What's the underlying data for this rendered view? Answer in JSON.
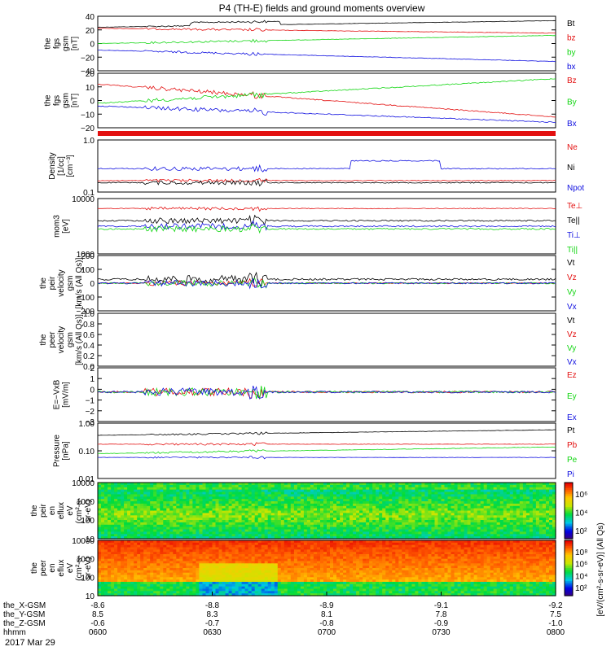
{
  "title": "P4 (TH-E) fields and ground moments overview",
  "date": "2017 Mar 29",
  "colors": {
    "black": "#000000",
    "red": "#e31010",
    "green": "#12d612",
    "blue": "#1010e0"
  },
  "chart_data": [
    {
      "type": "line",
      "ylabel": [
        "the",
        "fgs",
        "gsm",
        "[nT]"
      ],
      "yticks": [
        "40",
        "20",
        "0",
        "−20",
        "−40"
      ],
      "ylim": [
        -40,
        40
      ],
      "series": [
        {
          "name": "Bt",
          "color": "black"
        },
        {
          "name": "bz",
          "color": "red"
        },
        {
          "name": "by",
          "color": "green"
        },
        {
          "name": "bx",
          "color": "blue"
        }
      ]
    },
    {
      "type": "line",
      "ylabel": [
        "the",
        "fgs",
        "gsm",
        "[nT]"
      ],
      "yticks": [
        "20",
        "10",
        "0",
        "−10",
        "−20"
      ],
      "ylim": [
        -25,
        25
      ],
      "series": [
        {
          "name": "Bz",
          "color": "red"
        },
        {
          "name": "By",
          "color": "green"
        },
        {
          "name": "Bx",
          "color": "blue"
        }
      ]
    },
    {
      "type": "line",
      "ylabel": [
        "Density",
        "[1/cc]",
        "[cm⁻³]"
      ],
      "yticks": [
        "1.0",
        "0.1"
      ],
      "log": true,
      "series": [
        {
          "name": "Ne",
          "color": "red"
        },
        {
          "name": "Ni",
          "color": "black"
        },
        {
          "name": "Npot",
          "color": "blue"
        }
      ]
    },
    {
      "type": "line",
      "ylabel": [
        "mom3",
        "[eV]"
      ],
      "yticks": [
        "10000",
        "1000"
      ],
      "log": true,
      "series": [
        {
          "name": "Te⊥",
          "color": "red"
        },
        {
          "name": "Te||",
          "color": "black"
        },
        {
          "name": "Ti⊥",
          "color": "blue"
        },
        {
          "name": "Ti||",
          "color": "green"
        }
      ]
    },
    {
      "type": "line",
      "ylabel": [
        "the",
        "peir",
        "velocity",
        "gsm",
        "[km/s (All Qs)]"
      ],
      "yticks": [
        "200",
        "100",
        "0",
        "−100",
        "−200"
      ],
      "ylim": [
        -200,
        200
      ],
      "series": [
        {
          "name": "Vt",
          "color": "black"
        },
        {
          "name": "Vz",
          "color": "red"
        },
        {
          "name": "Vy",
          "color": "green"
        },
        {
          "name": "Vx",
          "color": "blue"
        }
      ]
    },
    {
      "type": "line",
      "ylabel": [
        "the",
        "peer",
        "velocity",
        "gsm",
        "[km/s (All Qs)]"
      ],
      "yticks": [
        "1.0",
        "0.8",
        "0.6",
        "0.4",
        "0.2",
        "0.0"
      ],
      "ylim": [
        0,
        1
      ],
      "series": [
        {
          "name": "Vt",
          "color": "black"
        },
        {
          "name": "Vz",
          "color": "red"
        },
        {
          "name": "Vy",
          "color": "green"
        },
        {
          "name": "Vx",
          "color": "blue"
        }
      ]
    },
    {
      "type": "line",
      "ylabel": [
        "E=−VxB",
        "[mV/m]"
      ],
      "yticks": [
        "2",
        "1",
        "0",
        "−1",
        "−2",
        "−3"
      ],
      "ylim": [
        -3,
        3
      ],
      "series": [
        {
          "name": "Ez",
          "color": "red"
        },
        {
          "name": "Ey",
          "color": "green"
        },
        {
          "name": "Ex",
          "color": "blue"
        }
      ]
    },
    {
      "type": "line",
      "ylabel": [
        "Pressure",
        "[nPa]"
      ],
      "yticks": [
        "1.00",
        "0.10",
        "0.01"
      ],
      "log": true,
      "series": [
        {
          "name": "Pt",
          "color": "black"
        },
        {
          "name": "Pb",
          "color": "red"
        },
        {
          "name": "Pe",
          "color": "green"
        },
        {
          "name": "Pi",
          "color": "blue"
        }
      ]
    },
    {
      "type": "heatmap",
      "ylabel": [
        "the",
        "peir",
        "en",
        "eflux",
        "eV",
        "(cm²-s-",
        "sr-eV)"
      ],
      "yticks": [
        "10000",
        "1000",
        "100",
        "10"
      ],
      "log": true
    },
    {
      "type": "heatmap",
      "ylabel": [
        "the",
        "peer",
        "en",
        "eflux",
        "eV",
        "(cm²-s-",
        "sr-eV)"
      ],
      "yticks": [
        "10000",
        "1000",
        "100",
        "10"
      ],
      "log": true
    }
  ],
  "colorbar": {
    "label": "[eV/(cm²-s-sr-eV)] (All Qs)",
    "upper_ticks": [
      "10⁶",
      "10⁴",
      "10²"
    ],
    "lower_ticks": [
      "10⁸",
      "10⁶",
      "10⁴",
      "10²"
    ]
  },
  "xaxis": {
    "row_labels": [
      "the_X-GSM",
      "the_Y-GSM",
      "the_Z-GSM",
      "hhmm"
    ],
    "ticks": [
      {
        "x": "-8.6",
        "y": "8.5",
        "z": "-0.6",
        "time": "0600"
      },
      {
        "x": "-8.8",
        "y": "8.3",
        "z": "-0.7",
        "time": "0630"
      },
      {
        "x": "-8.9",
        "y": "8.1",
        "z": "-0.8",
        "time": "0700"
      },
      {
        "x": "-9.1",
        "y": "7.8",
        "z": "-0.9",
        "time": "0730"
      },
      {
        "x": "-9.2",
        "y": "7.5",
        "z": "-1.0",
        "time": "0800"
      }
    ]
  }
}
